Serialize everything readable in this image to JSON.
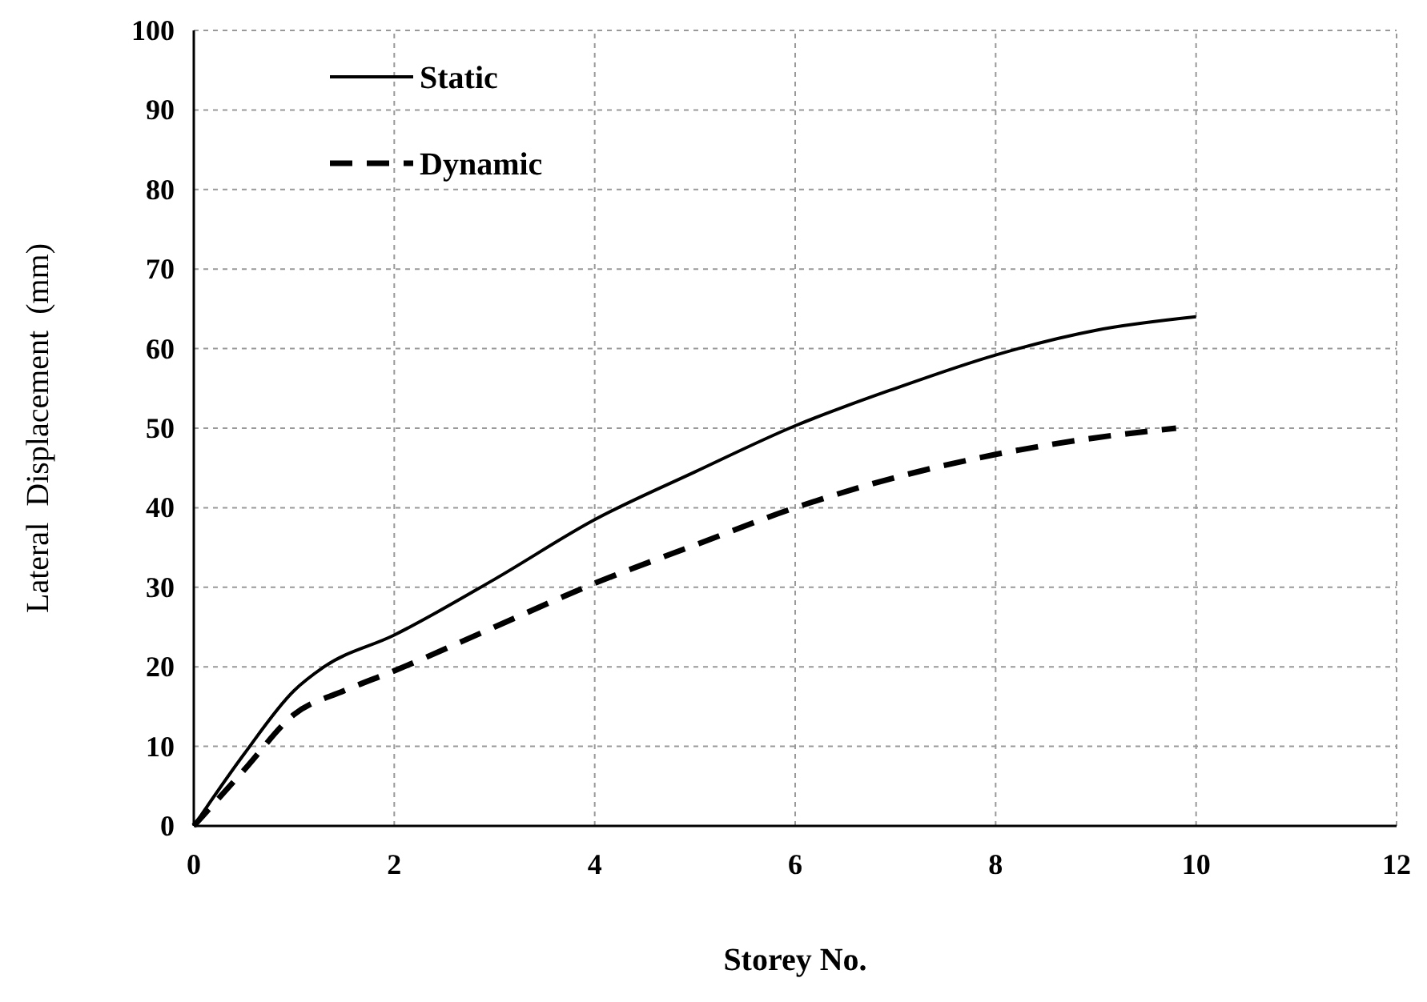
{
  "chart_data": {
    "type": "line",
    "xlabel": "Storey No.",
    "ylabel": "Lateral  Displacement  (mm)",
    "xlim": [
      0,
      12
    ],
    "xticks": [
      0,
      2,
      4,
      6,
      8,
      10,
      12
    ],
    "ylim": [
      0,
      100
    ],
    "yticks": [
      0,
      10,
      20,
      30,
      40,
      50,
      60,
      70,
      80,
      90,
      100
    ],
    "grid": true,
    "legend": "top left",
    "series": [
      {
        "name": "Static",
        "color": "#000000",
        "line_style": "solid",
        "x": [
          0,
          0.5,
          1,
          1.3,
          2,
          3,
          4,
          5,
          6,
          7,
          8,
          9,
          10
        ],
        "values": [
          0,
          9,
          17,
          20,
          24,
          31,
          38.5,
          44.5,
          50.3,
          55,
          59.2,
          62.3,
          64
        ]
      },
      {
        "name": "Dynamic",
        "color": "#000000",
        "line_style": "dashed",
        "x": [
          0,
          0.5,
          1,
          1.5,
          2,
          3,
          4,
          5,
          6,
          7,
          8,
          9,
          9.8
        ],
        "values": [
          0,
          7,
          14,
          17,
          19.5,
          25,
          30.5,
          35.3,
          40,
          43.8,
          46.7,
          48.8,
          50
        ]
      }
    ]
  }
}
